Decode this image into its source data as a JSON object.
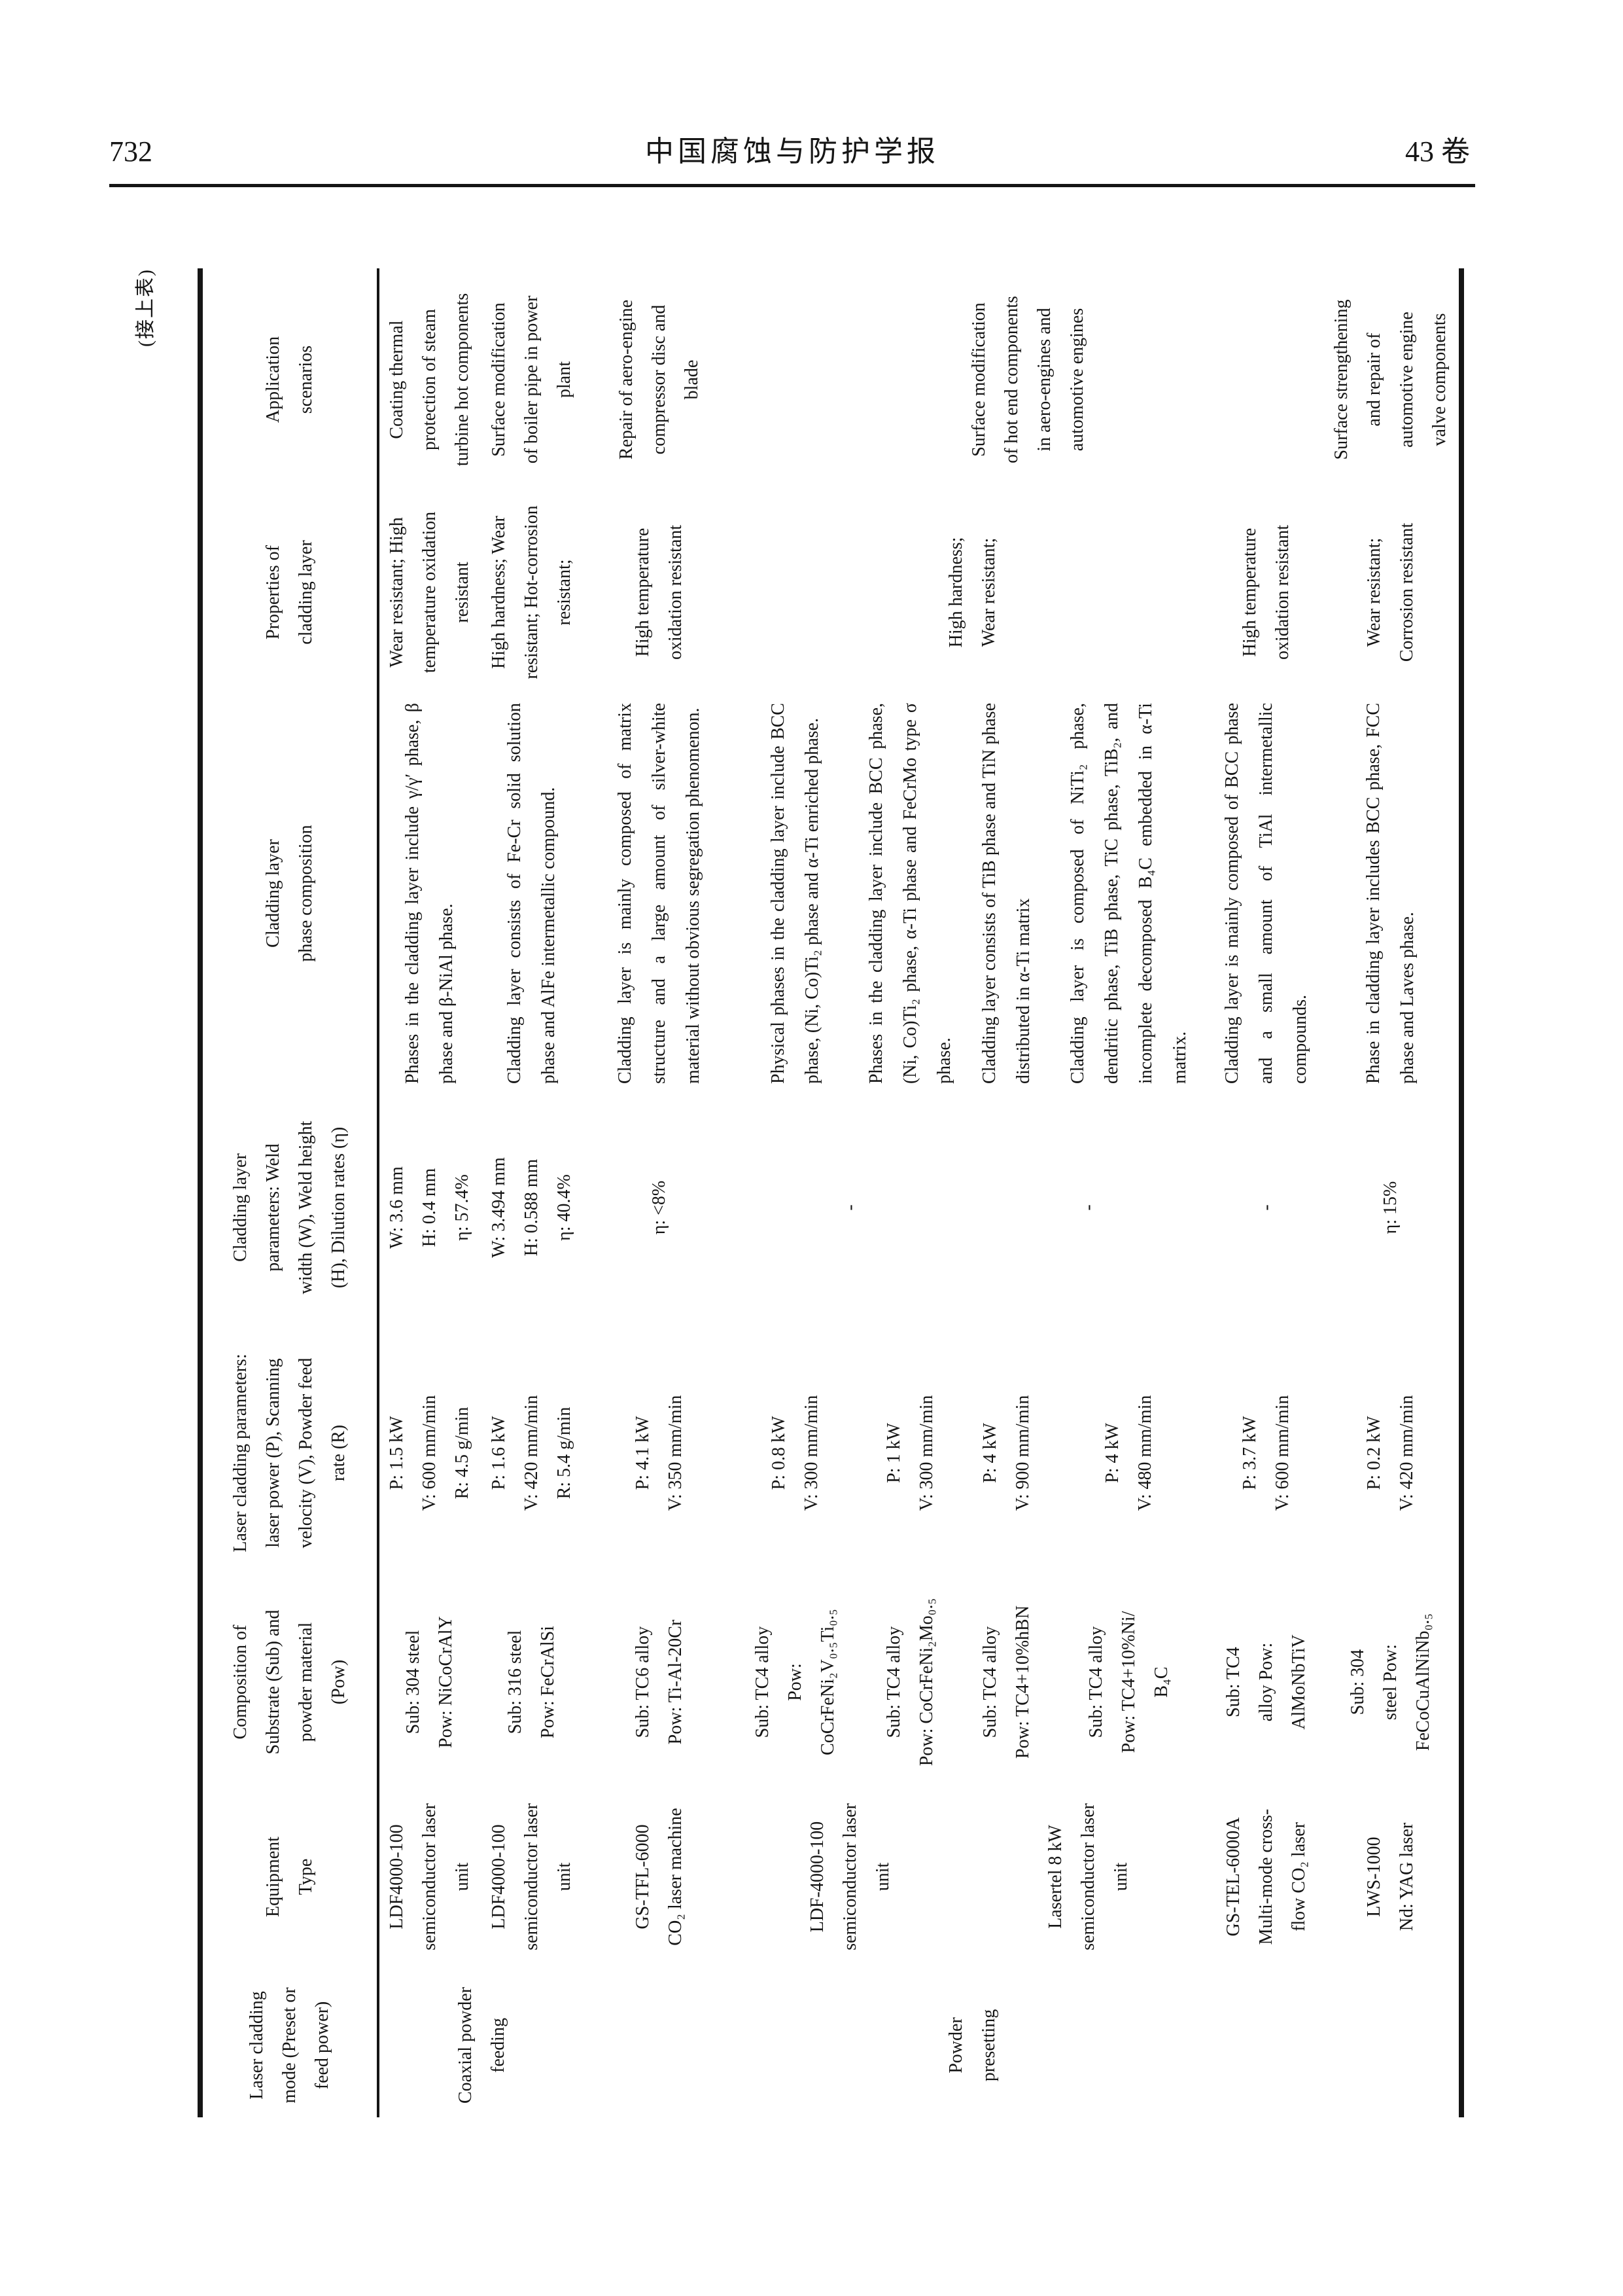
{
  "running_head": {
    "page_number": "732",
    "journal_title": "中国腐蚀与防护学报",
    "volume_label": "43 卷"
  },
  "caption": "(接上表)",
  "table": {
    "headers": {
      "mode": "Laser cladding\nmode (Preset or\nfeed power)",
      "equipment": "Equipment\nType",
      "composition": "Composition of\nSubstrate (Sub) and\npowder material\n(Pow)",
      "laser_params": "Laser cladding parameters:\nlaser power (P), Scanning\nvelocity (V), Powder feed\nrate (R)",
      "cladding_params": "Cladding layer\nparameters: Weld\nwidth (W), Weld height\n(H), Dilution rates (η)",
      "phase": "Cladding layer\nphase composition",
      "properties": "Properties of\ncladding layer",
      "application": "Application\nscenarios"
    },
    "modes": {
      "coaxial": "Coaxial powder\nfeeding",
      "preset": "Powder\npresetting"
    },
    "rows": [
      {
        "equipment": "LDF4000-100\nsemiconductor laser\nunit",
        "composition": "Sub: 304 steel\nPow: NiCoCrAlY",
        "laser_params": "P: 1.5 kW\nV: 600 mm/min\nR: 4.5 g/min",
        "cladding_params": "W: 3.6 mm\nH: 0.4 mm\nη: 57.4%",
        "phase": "Phases in the cladding layer include γ/γ′ phase, β phase and β-NiAl phase.",
        "properties": "Wear resistant; High\ntemperature oxidation\nresistant",
        "application": "Coating thermal\nprotection of steam\nturbine hot components"
      },
      {
        "equipment": "LDF4000-100\nsemiconductor laser\nunit",
        "composition": "Sub: 316 steel\nPow: FeCrAlSi",
        "laser_params": "P: 1.6 kW\nV: 420 mm/min\nR: 5.4 g/min",
        "cladding_params": "W: 3.494 mm\nH: 0.588 mm\nη: 40.4%",
        "phase": "Cladding layer consists of Fe-Cr solid solution phase and AlFe intermetallic compound.",
        "properties": "High hardness; Wear\nresistant; Hot-corrosion\nresistant;",
        "application": "Surface modification\nof boiler pipe in power\nplant"
      },
      {
        "equipment": "GS-TFL-6000\nCO₂ laser machine",
        "composition": "Sub: TC6 alloy\nPow: Ti-Al-20Cr",
        "laser_params": "P: 4.1 kW\nV: 350 mm/min",
        "cladding_params": "η: <8%",
        "phase": "Cladding layer is mainly composed of matrix structure and a large amount of silver-white material without obvious segregation phenomenon.",
        "properties": "High temperature\noxidation resistant",
        "application": "Repair of aero-engine\ncompressor disc and\nblade"
      },
      {
        "equipment": "LDF-4000-100\nsemiconductor laser\nunit",
        "composition": "Sub: TC4 alloy\nPow:\nCoCrFeNi₂V₀.₅Ti₀.₅",
        "laser_params": "P: 0.8 kW\nV: 300 mm/min",
        "cladding_params": "-",
        "phase": "Physical phases in the cladding layer include BCC phase, (Ni, Co)Ti₂ phase and α-Ti enriched phase.",
        "properties": "High hardness;\nWear resistant;",
        "application": "Surface modification\nof hot end components\nin aero-engines and\nautomotive engines"
      },
      {
        "composition": "Sub: TC4 alloy\nPow: CoCrFeNi₂Mo₀.₅",
        "laser_params": "P: 1 kW\nV: 300 mm/min",
        "phase": "Phases in the cladding layer include BCC phase, (Ni, Co)Ti₂ phase, α-Ti phase and FeCrMo type σ phase."
      },
      {
        "equipment": "Lasertel 8 kW\nsemiconductor laser\nunit",
        "composition": "Sub: TC4 alloy\nPow: TC4+10%hBN",
        "laser_params": "P: 4 kW\nV: 900 mm/min",
        "cladding_params": "-",
        "phase": "Cladding layer consists of TiB phase and TiN phase distributed in α-Ti matrix"
      },
      {
        "composition": "Sub: TC4 alloy\nPow: TC4+10%Ni/\nB₄C",
        "laser_params": "P: 4 kW\nV: 480 mm/min",
        "phase": "Cladding layer is composed of NiTi₂ phase, dendritic phase, TiB phase, TiC phase, TiB₂, and incomplete decomposed B₄C embedded in α-Ti matrix."
      },
      {
        "equipment": "GS-TEL-6000A\nMulti-mode cross-\nflow CO₂ laser",
        "composition": "Sub: TC4\nalloy Pow:\nAlMoNbTiV",
        "laser_params": "P: 3.7 kW\nV: 600 mm/min",
        "cladding_params": "-",
        "phase": "Cladding layer is mainly composed of BCC phase and a small amount of TiAl intermetallic compounds.",
        "properties": "High temperature\noxidation resistant"
      },
      {
        "equipment": "LWS-1000\nNd: YAG laser",
        "composition": "Sub: 304\nsteel Pow:\nFeCoCuAlNiNb₀.₅",
        "laser_params": "P: 0.2 kW\nV: 420 mm/min",
        "cladding_params": "η: 15%",
        "phase": "Phase in cladding layer includes BCC phase, FCC phase and Laves phase.",
        "properties": "Wear resistant;\nCorrosion resistant",
        "application": "Surface strengthening\nand repair of\nautomotive engine\nvalve components"
      }
    ]
  }
}
